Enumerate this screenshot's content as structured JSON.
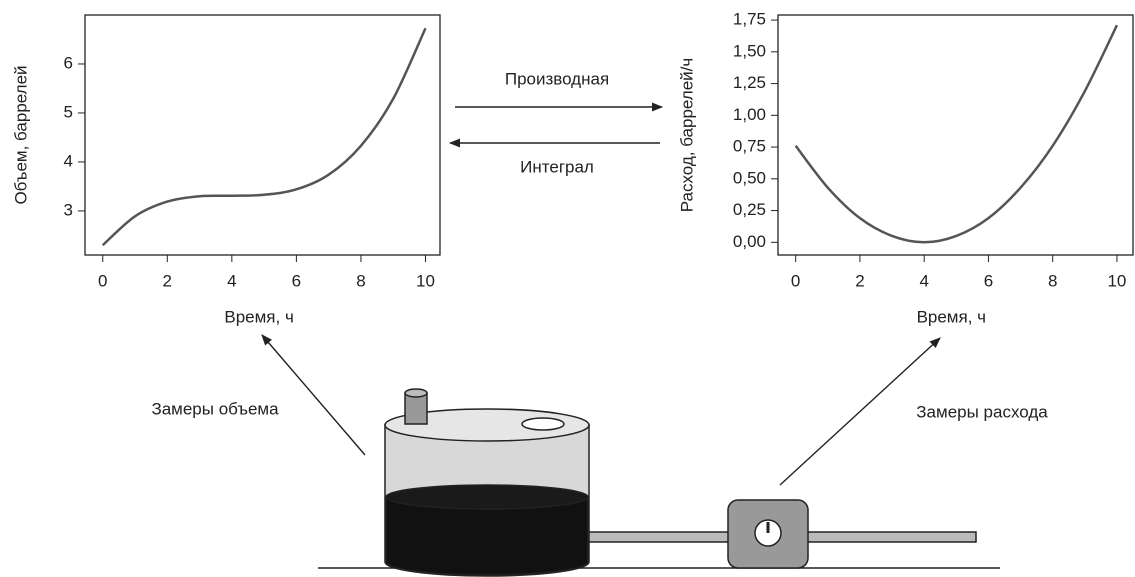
{
  "chart_data": [
    {
      "type": "line",
      "x_label": "Время, ч",
      "y_label": "Объем, баррелей",
      "x": [
        0,
        1,
        2,
        3,
        4,
        5,
        6,
        7,
        8,
        9,
        10
      ],
      "series": [
        {
          "color": "#555555",
          "values": [
            2.3,
            2.89,
            3.19,
            3.3,
            3.31,
            3.33,
            3.44,
            3.74,
            4.33,
            5.29,
            6.73
          ]
        }
      ],
      "xlim": [
        -0.55,
        10.45
      ],
      "xticks": [
        0,
        2,
        4,
        6,
        8,
        10
      ],
      "ylim": [
        2.1,
        7.0
      ],
      "yticks": [
        3,
        4,
        5,
        6
      ]
    },
    {
      "type": "line",
      "x_label": "Время, ч",
      "y_label": "Расход, баррелей/ч",
      "x": [
        0,
        1,
        2,
        3,
        4,
        5,
        6,
        7,
        8,
        9,
        10
      ],
      "series": [
        {
          "color": "#555555",
          "values": [
            0.76,
            0.43,
            0.19,
            0.05,
            0,
            0.05,
            0.19,
            0.43,
            0.76,
            1.19,
            1.71
          ]
        }
      ],
      "xlim": [
        -0.55,
        10.5
      ],
      "xticks": [
        0,
        2,
        4,
        6,
        8,
        10
      ],
      "ylim": [
        -0.1,
        1.79
      ],
      "yticks": [
        {
          "value": 0,
          "label": "0,00"
        },
        {
          "value": 0.25,
          "label": "0,25"
        },
        {
          "value": 0.5,
          "label": "0,50"
        },
        {
          "value": 0.75,
          "label": "0,75"
        },
        {
          "value": 1,
          "label": "1,00"
        },
        {
          "value": 1.25,
          "label": "1,25"
        },
        {
          "value": 1.5,
          "label": "1,50"
        },
        {
          "value": 1.75,
          "label": "1,75"
        }
      ]
    }
  ],
  "labels": {
    "derivative": "Производная",
    "integral": "Интеграл",
    "volume_measure": "Замеры объема",
    "flow_measure": "Замеры расхода"
  }
}
